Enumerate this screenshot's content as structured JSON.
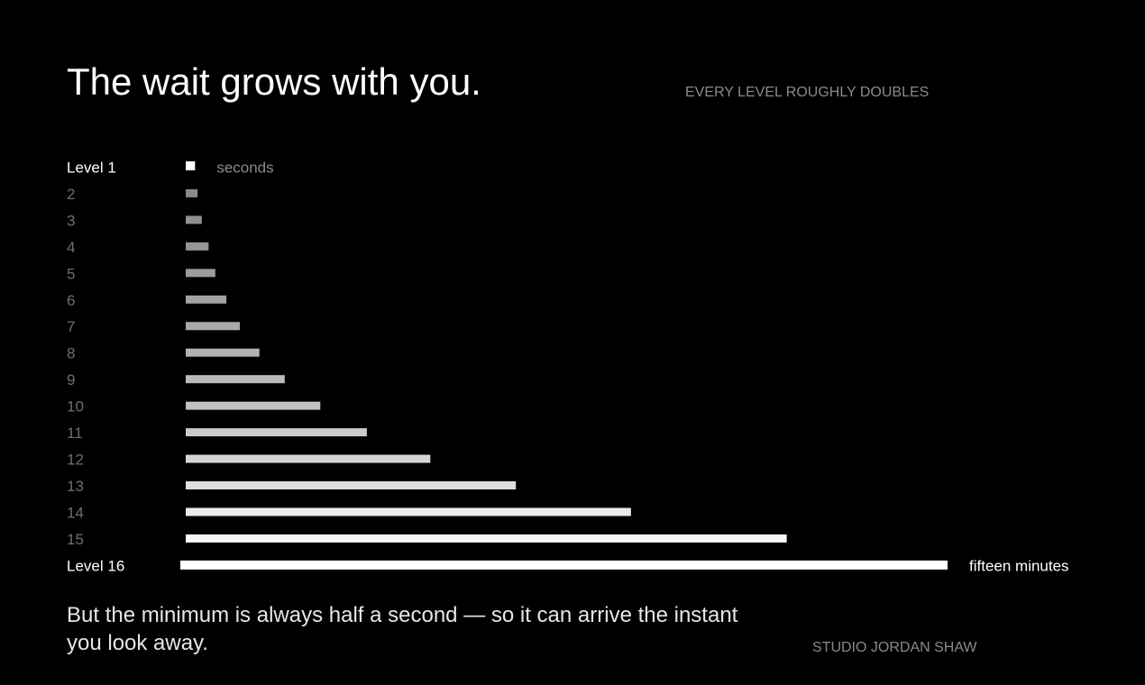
{
  "chart_data": {
    "type": "bar",
    "orientation": "horizontal",
    "title": "The wait grows with you.",
    "subtitle": "EVERY LEVEL ROUGHLY DOUBLES",
    "categories": [
      "Level 1",
      "2",
      "3",
      "4",
      "5",
      "6",
      "7",
      "8",
      "9",
      "10",
      "11",
      "12",
      "13",
      "14",
      "15",
      "Level 16"
    ],
    "values": [
      11,
      14,
      19,
      27,
      35,
      48,
      64,
      87,
      117,
      159,
      214,
      289,
      390,
      526,
      710,
      900
    ],
    "colors": [
      "#ffffff",
      "#8a8a8a",
      "#909090",
      "#969696",
      "#9c9c9c",
      "#a3a3a3",
      "#aaaaaa",
      "#b2b2b2",
      "#bababa",
      "#c2c2c2",
      "#cbcbcb",
      "#d5d5d5",
      "#e0e0e0",
      "#ebebeb",
      "#f7f7f7",
      "#ffffff"
    ],
    "xlim": [
      0,
      900
    ],
    "annotations": [
      "seconds",
      "fifteen minutes"
    ],
    "note": "But the minimum is always half a second — so it can arrive the instant you look away.",
    "credit": "STUDIO JORDAN SHAW"
  }
}
